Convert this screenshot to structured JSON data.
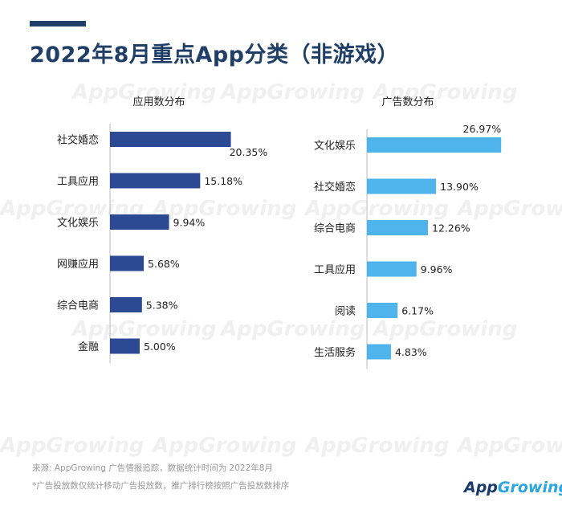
{
  "title": "2022年8月重点App分类（非游戏）",
  "watermark": "AppGrowing",
  "chart_data": [
    {
      "type": "bar",
      "orientation": "horizontal",
      "title": "应用数分布",
      "categories": [
        "社交婚恋",
        "工具应用",
        "文化娱乐",
        "网赚应用",
        "综合电商",
        "金融"
      ],
      "values": [
        20.35,
        15.18,
        9.94,
        5.68,
        5.38,
        5.0
      ],
      "value_labels": [
        "20.35%",
        "15.18%",
        "9.94%",
        "5.68%",
        "5.38%",
        "5.00%"
      ],
      "unit": "%",
      "color": "#2c4a94"
    },
    {
      "type": "bar",
      "orientation": "horizontal",
      "title": "广告数分布",
      "categories": [
        "文化娱乐",
        "社交婚恋",
        "综合电商",
        "工具应用",
        "阅读",
        "生活服务"
      ],
      "values": [
        26.97,
        13.9,
        12.26,
        9.96,
        6.17,
        4.83
      ],
      "value_labels": [
        "26.97%",
        "13.90%",
        "12.26%",
        "9.96%",
        "6.17%",
        "4.83%"
      ],
      "unit": "%",
      "color": "#4fb4ec"
    }
  ],
  "footer": {
    "source": "来源:  AppGrowing  广告情报追踪，数据统计时间为  2022年8月",
    "note": "*广告投放数仅统计移动广告投放数，推广排行榜按照广告投放数排序"
  },
  "logo": {
    "part1": "App",
    "part2": "Growing"
  }
}
